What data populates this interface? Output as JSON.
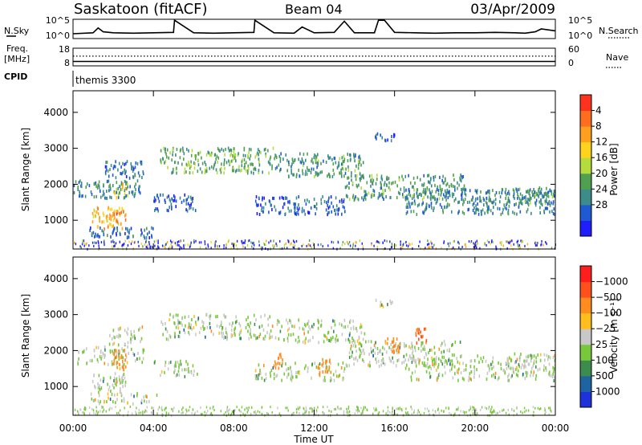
{
  "header": {
    "station": "Saskatoon (fitACF)",
    "beam": "Beam 04",
    "date": "03/Apr/2009"
  },
  "left_labels": {
    "nsky": "N.Sky",
    "freq_line1": "Freq.",
    "freq_line2": "[MHz]",
    "cpid": "CPID"
  },
  "right_labels": {
    "nsearch": "N.Search",
    "nave": "Nave"
  },
  "cpid_text": "themis 3300",
  "chart_data": [
    {
      "type": "line",
      "name": "noise-panel",
      "left_ticks": [
        "10^5",
        "10^0"
      ],
      "right_ticks": [
        "10^5",
        "10^0"
      ],
      "x": [
        0,
        1,
        1.25,
        1.5,
        2,
        3,
        4,
        5,
        5.05,
        6,
        7,
        8,
        9,
        9.05,
        10,
        11,
        11.4,
        12,
        13,
        13.5,
        14,
        15,
        15.2,
        15.5,
        16,
        17,
        18,
        19,
        20,
        21,
        22,
        22.5,
        23,
        23.3,
        24
      ],
      "y": [
        0.25,
        0.3,
        0.55,
        0.35,
        0.3,
        0.28,
        0.3,
        0.32,
        0.95,
        0.3,
        0.28,
        0.3,
        0.32,
        0.95,
        0.3,
        0.28,
        0.6,
        0.3,
        0.32,
        0.9,
        0.3,
        0.3,
        0.95,
        0.95,
        0.32,
        0.3,
        0.28,
        0.3,
        0.3,
        0.32,
        0.3,
        0.28,
        0.35,
        0.5,
        0.4
      ]
    },
    {
      "type": "line",
      "name": "frequency-panel",
      "left_ticks": [
        "18",
        "8"
      ],
      "right_ticks": [
        "60",
        "0"
      ],
      "freq_mhz": 10.5,
      "nave": 33
    },
    {
      "type": "heatmap",
      "name": "power",
      "ylabel": "Slant Range [km]",
      "yticks": [
        1000,
        2000,
        3000,
        4000
      ],
      "ylim": [
        200,
        4600
      ],
      "xlim": [
        0,
        24
      ],
      "colorbar": {
        "label": "Power [dB]",
        "ticks": [
          "4",
          "8",
          "12",
          "16",
          "20",
          "24",
          "28"
        ],
        "colors": [
          "#1e1eff",
          "#1e5ad2",
          "#3c8c8c",
          "#50a050",
          "#b4dc3c",
          "#ffd21e",
          "#ffa01e",
          "#ff6e1e",
          "#ff321e"
        ]
      },
      "blobs": [
        {
          "t0": 0.0,
          "t1": 3.5,
          "r0": 1650,
          "r1": 2150,
          "p": 10
        },
        {
          "t0": 1.5,
          "t1": 3.5,
          "r0": 2200,
          "r1": 2700,
          "p": 8
        },
        {
          "t0": 0.8,
          "t1": 2.5,
          "r0": 800,
          "r1": 1400,
          "p": 24
        },
        {
          "t0": 1.7,
          "t1": 2.6,
          "r0": 950,
          "r1": 1300,
          "p": 29
        },
        {
          "t0": 1.9,
          "t1": 2.7,
          "r0": 1650,
          "r1": 2050,
          "p": 20
        },
        {
          "t0": 0.8,
          "t1": 4.2,
          "r0": 550,
          "r1": 850,
          "p": 8
        },
        {
          "t0": 4.3,
          "t1": 10.0,
          "r0": 2350,
          "r1": 3050,
          "p": 14
        },
        {
          "t0": 10.0,
          "t1": 14.5,
          "r0": 2250,
          "r1": 2900,
          "p": 12
        },
        {
          "t0": 13.5,
          "t1": 19.5,
          "r0": 1600,
          "r1": 2300,
          "p": 12
        },
        {
          "t0": 16.5,
          "t1": 24.0,
          "r0": 1200,
          "r1": 1900,
          "p": 10
        },
        {
          "t0": 21.5,
          "t1": 24.0,
          "r0": 1500,
          "r1": 1950,
          "p": 12
        },
        {
          "t0": 4.0,
          "t1": 6.2,
          "r0": 1300,
          "r1": 1750,
          "p": 6
        },
        {
          "t0": 9.0,
          "t1": 13.5,
          "r0": 1200,
          "r1": 1700,
          "p": 6
        },
        {
          "t0": 15.0,
          "t1": 16.0,
          "r0": 3250,
          "r1": 3500,
          "p": 6
        }
      ]
    },
    {
      "type": "heatmap",
      "name": "velocity",
      "ylabel": "Slant Range [km]",
      "xlabel": "Time UT",
      "xticks": [
        "00:00",
        "04:00",
        "08:00",
        "12:00",
        "16:00",
        "20:00",
        "00:00"
      ],
      "yticks": [
        1000,
        2000,
        3000,
        4000
      ],
      "ylim": [
        200,
        4600
      ],
      "xlim": [
        0,
        24
      ],
      "colorbar": {
        "label": "Velocity [m s⁻¹]",
        "ticks": [
          "1000",
          "500",
          "100",
          "25",
          "−25",
          "−100",
          "−500",
          "−1000"
        ],
        "colors": [
          "#1e32dc",
          "#1e64a0",
          "#3c8c50",
          "#78c83c",
          "#c8c8c8",
          "#ffbe1e",
          "#ff8c1e",
          "#ff501e",
          "#ff1e1e"
        ]
      },
      "notable": [
        {
          "t0": 2.0,
          "t1": 2.6,
          "r0": 1500,
          "r1": 2100,
          "v": -150
        },
        {
          "t0": 9.9,
          "t1": 10.4,
          "r0": 1550,
          "r1": 1950,
          "v": -200
        },
        {
          "t0": 12.1,
          "t1": 12.8,
          "r0": 1350,
          "r1": 1800,
          "v": -300
        },
        {
          "t0": 15.6,
          "t1": 16.3,
          "r0": 1950,
          "r1": 2400,
          "v": -200
        },
        {
          "t0": 17.0,
          "t1": 17.6,
          "r0": 2250,
          "r1": 2650,
          "v": -500
        }
      ]
    }
  ]
}
